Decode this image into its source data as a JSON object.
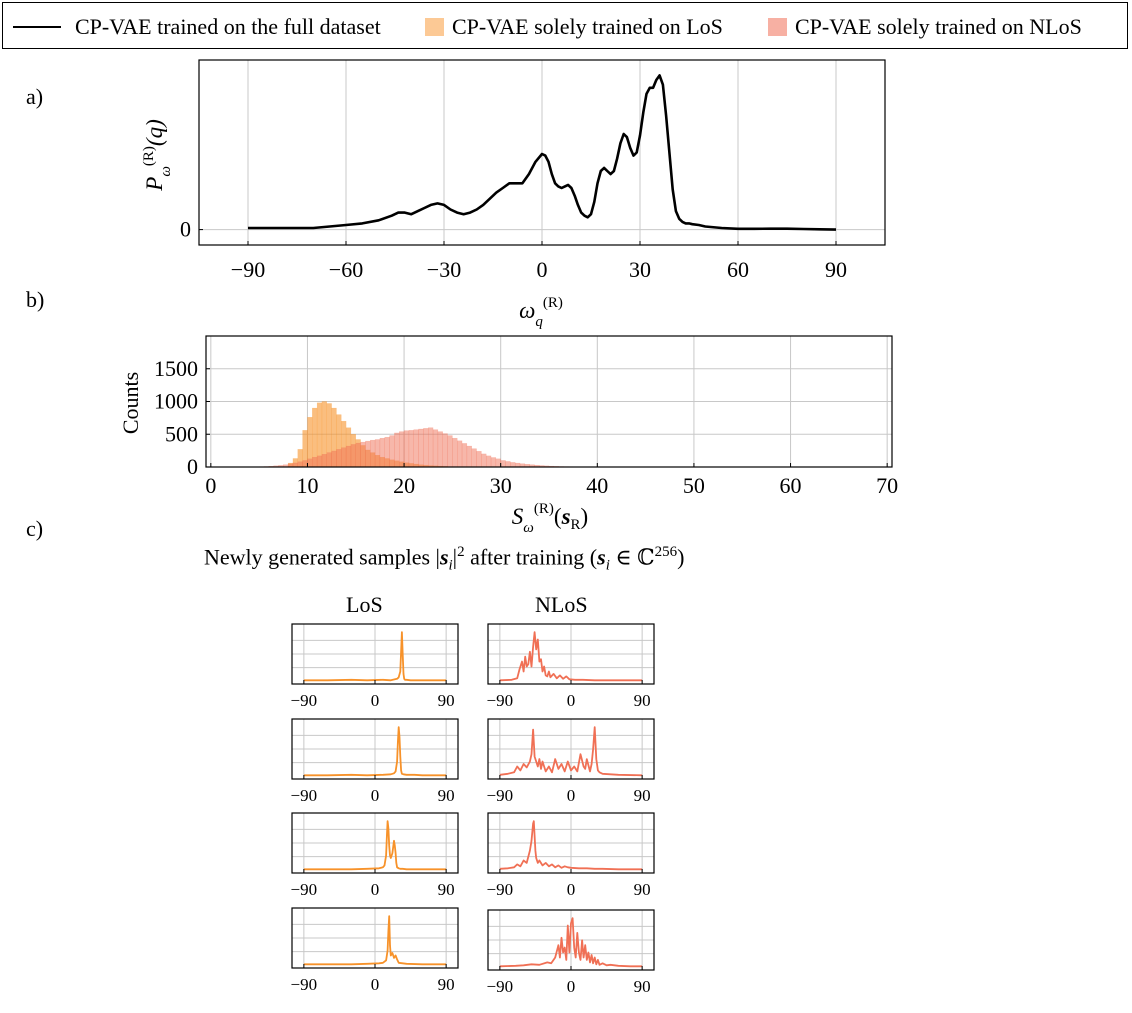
{
  "legend": {
    "full_label": "CP-VAE trained on the full dataset",
    "los_label": "CP-VAE solely trained on LoS",
    "nlos_label": "CP-VAE solely trained on NLoS"
  },
  "colors": {
    "full": "#000000",
    "los": "#f7922a",
    "nlos": "#f07055",
    "los_fill": "#fcc995",
    "nlos_fill": "#f7b0a3",
    "grid": "#c8c8c8"
  },
  "labels": {
    "a": "a)",
    "b": "b)",
    "c": "c)"
  },
  "panel_c": {
    "title": "Newly generated samples |s_i|² after training (s_i ∈ ℂ²⁵⁶)",
    "title_pre": "Newly generated samples |",
    "title_s": "s",
    "title_i": "i",
    "title_mid": "|",
    "title_sq": "2",
    "title_post": " after training (",
    "title_s2": "s",
    "title_i2": "i",
    "title_in": " ∈ ℂ",
    "title_exp": "256",
    "title_close": ")",
    "los_head": "LoS",
    "nlos_head": "NLoS"
  },
  "chart_data": [
    {
      "type": "line",
      "id": "a",
      "ylabel": "P_ω^(R)(q)",
      "xlabel": "ω_q^(R)",
      "xlim": [
        -105,
        105
      ],
      "ylim": [
        -0.1,
        1.1
      ],
      "x_ticks": [
        "−90",
        "−60",
        "−30",
        "0",
        "30",
        "60",
        "90"
      ],
      "y_ticks": [
        "0"
      ],
      "grid": true,
      "series": [
        {
          "name": "CP-VAE trained on the full dataset",
          "x": [
            -90,
            -80,
            -70,
            -65,
            -60,
            -55,
            -50,
            -46,
            -44,
            -42,
            -40,
            -38,
            -36,
            -34,
            -32,
            -30,
            -28,
            -26,
            -24,
            -22,
            -20,
            -18,
            -16,
            -14,
            -12,
            -10,
            -8,
            -6,
            -4,
            -2,
            0,
            1,
            2,
            3,
            4,
            5,
            6,
            7,
            8,
            9,
            10,
            11,
            12,
            13,
            14,
            15,
            16,
            17,
            18,
            19,
            20,
            21,
            22,
            23,
            24,
            25,
            26,
            27,
            28,
            29,
            30,
            31,
            32,
            33,
            34,
            35,
            36,
            37,
            38,
            39,
            40,
            41,
            42,
            43,
            44,
            45,
            46,
            48,
            50,
            55,
            60,
            65,
            70,
            75,
            80,
            85,
            90
          ],
          "y": [
            0.01,
            0.01,
            0.01,
            0.02,
            0.03,
            0.04,
            0.06,
            0.09,
            0.11,
            0.11,
            0.1,
            0.12,
            0.14,
            0.16,
            0.17,
            0.16,
            0.13,
            0.11,
            0.1,
            0.11,
            0.13,
            0.16,
            0.2,
            0.24,
            0.27,
            0.3,
            0.3,
            0.3,
            0.36,
            0.44,
            0.49,
            0.48,
            0.44,
            0.36,
            0.3,
            0.28,
            0.27,
            0.28,
            0.29,
            0.27,
            0.22,
            0.16,
            0.11,
            0.09,
            0.08,
            0.1,
            0.18,
            0.3,
            0.38,
            0.4,
            0.38,
            0.36,
            0.38,
            0.46,
            0.56,
            0.62,
            0.6,
            0.53,
            0.48,
            0.5,
            0.61,
            0.76,
            0.88,
            0.92,
            0.92,
            0.97,
            1.0,
            0.94,
            0.74,
            0.5,
            0.26,
            0.12,
            0.07,
            0.05,
            0.04,
            0.04,
            0.035,
            0.03,
            0.02,
            0.01,
            0.005,
            0.005,
            0.006,
            0.006,
            0.004,
            0.002,
            0.0
          ]
        }
      ]
    },
    {
      "type": "bar",
      "id": "b",
      "xlabel": "S_ω^(R)(s_R)",
      "ylabel": "Counts",
      "xlim": [
        -0.5,
        70.5
      ],
      "ylim": [
        0,
        2000
      ],
      "x_ticks": [
        "0",
        "10",
        "20",
        "30",
        "40",
        "50",
        "60",
        "70"
      ],
      "y_ticks": [
        "0",
        "500",
        "1000",
        "1500"
      ],
      "grid": true,
      "bin_width": 0.5,
      "series": [
        {
          "name": "CP-VAE solely trained on LoS",
          "x": [
            8,
            8.5,
            9,
            9.5,
            10,
            10.5,
            11,
            11.5,
            12,
            12.5,
            13,
            13.5,
            14,
            14.5,
            15,
            15.5,
            16,
            16.5,
            17,
            17.5,
            18,
            18.5,
            19,
            19.5,
            20,
            20.5,
            21,
            21.5,
            22,
            22.5,
            23,
            23.5,
            24
          ],
          "y": [
            60,
            130,
            270,
            560,
            760,
            900,
            980,
            1000,
            970,
            900,
            800,
            700,
            600,
            500,
            420,
            330,
            260,
            220,
            180,
            150,
            130,
            110,
            95,
            80,
            65,
            55,
            45,
            35,
            28,
            22,
            18,
            14,
            10
          ]
        },
        {
          "name": "CP-VAE solely trained on NLoS",
          "x": [
            5,
            5.5,
            6,
            6.5,
            7,
            7.5,
            8,
            8.5,
            9,
            9.5,
            10,
            10.5,
            11,
            11.5,
            12,
            12.5,
            13,
            13.5,
            14,
            14.5,
            15,
            15.5,
            16,
            16.5,
            17,
            17.5,
            18,
            18.5,
            19,
            19.5,
            20,
            20.5,
            21,
            21.5,
            22,
            22.5,
            23,
            23.5,
            24,
            24.5,
            25,
            25.5,
            26,
            26.5,
            27,
            27.5,
            28,
            28.5,
            29,
            29.5,
            30,
            30.5,
            31,
            31.5,
            32,
            32.5,
            33,
            33.5,
            34,
            34.5,
            35,
            35.5,
            36,
            36.5,
            37,
            37.5,
            38,
            38.5,
            39,
            39.5,
            40
          ],
          "y": [
            5,
            8,
            12,
            18,
            25,
            35,
            48,
            62,
            80,
            100,
            125,
            150,
            170,
            195,
            220,
            245,
            270,
            295,
            320,
            345,
            365,
            380,
            395,
            410,
            420,
            440,
            455,
            480,
            520,
            540,
            555,
            560,
            570,
            580,
            590,
            600,
            570,
            540,
            510,
            480,
            440,
            400,
            360,
            320,
            280,
            240,
            200,
            170,
            145,
            125,
            100,
            85,
            70,
            60,
            50,
            42,
            35,
            28,
            22,
            17,
            13,
            10,
            8,
            6,
            5,
            4,
            3,
            2,
            2,
            1,
            1
          ]
        }
      ]
    },
    {
      "type": "line",
      "id": "c-los-1",
      "xlim": [
        -105,
        105
      ],
      "x_ticks": [
        "−90",
        "0",
        "90"
      ],
      "grid": true,
      "series": [
        {
          "x": [
            -90,
            -60,
            -30,
            -10,
            10,
            20,
            28,
            30,
            32,
            33,
            34,
            35,
            36,
            37,
            38,
            40,
            45,
            60,
            90
          ],
          "y": [
            0.02,
            0.02,
            0.03,
            0.02,
            0.03,
            0.02,
            0.05,
            0.08,
            0.2,
            0.6,
            1.0,
            0.55,
            0.15,
            0.05,
            0.03,
            0.03,
            0.02,
            0.02,
            0.02
          ]
        }
      ]
    },
    {
      "type": "line",
      "id": "c-los-2",
      "xlim": [
        -105,
        105
      ],
      "x_ticks": [
        "−90",
        "0",
        "90"
      ],
      "grid": true,
      "series": [
        {
          "x": [
            -90,
            -60,
            -30,
            -10,
            10,
            20,
            24,
            26,
            28,
            29,
            30,
            31,
            32,
            33,
            34,
            36,
            40,
            50,
            60,
            90
          ],
          "y": [
            0.02,
            0.02,
            0.03,
            0.02,
            0.03,
            0.04,
            0.06,
            0.1,
            0.3,
            0.7,
            1.0,
            0.8,
            0.4,
            0.12,
            0.05,
            0.04,
            0.03,
            0.03,
            0.02,
            0.02
          ]
        }
      ]
    },
    {
      "type": "line",
      "id": "c-los-3",
      "xlim": [
        -105,
        105
      ],
      "x_ticks": [
        "−90",
        "0",
        "90"
      ],
      "grid": true,
      "series": [
        {
          "x": [
            -90,
            -60,
            -30,
            -10,
            5,
            10,
            12,
            14,
            15,
            16,
            17,
            18,
            19,
            20,
            22,
            24,
            25,
            26,
            27,
            28,
            30,
            32,
            35,
            40,
            60,
            90
          ],
          "y": [
            0.02,
            0.02,
            0.02,
            0.03,
            0.04,
            0.06,
            0.1,
            0.3,
            0.7,
            1.0,
            0.85,
            0.5,
            0.3,
            0.25,
            0.35,
            0.6,
            0.5,
            0.35,
            0.15,
            0.06,
            0.04,
            0.03,
            0.03,
            0.02,
            0.02,
            0.02
          ]
        }
      ]
    },
    {
      "type": "line",
      "id": "c-los-4",
      "xlim": [
        -105,
        105
      ],
      "x_ticks": [
        "−90",
        "0",
        "90"
      ],
      "grid": true,
      "series": [
        {
          "x": [
            -90,
            -60,
            -30,
            -10,
            5,
            10,
            14,
            16,
            17,
            18,
            19,
            20,
            22,
            24,
            26,
            28,
            30,
            35,
            40,
            60,
            90
          ],
          "y": [
            0.02,
            0.02,
            0.02,
            0.03,
            0.04,
            0.05,
            0.1,
            0.3,
            0.7,
            1.0,
            0.4,
            0.2,
            0.25,
            0.15,
            0.2,
            0.12,
            0.05,
            0.04,
            0.03,
            0.02,
            0.02
          ]
        }
      ]
    },
    {
      "type": "line",
      "id": "c-nlos-1",
      "xlim": [
        -105,
        105
      ],
      "x_ticks": [
        "−90",
        "0",
        "90"
      ],
      "grid": true,
      "series": [
        {
          "x": [
            -90,
            -75,
            -68,
            -65,
            -62,
            -60,
            -58,
            -56,
            -54,
            -52,
            -50,
            -48,
            -46,
            -44,
            -42,
            -40,
            -38,
            -36,
            -34,
            -32,
            -30,
            -28,
            -26,
            -22,
            -18,
            -14,
            -10,
            -6,
            -2,
            5,
            15,
            30,
            60,
            90
          ],
          "y": [
            0.02,
            0.03,
            0.06,
            0.25,
            0.4,
            0.2,
            0.5,
            0.3,
            0.35,
            0.6,
            0.3,
            0.7,
            1.0,
            0.65,
            0.85,
            0.4,
            0.45,
            0.2,
            0.3,
            0.12,
            0.1,
            0.2,
            0.08,
            0.15,
            0.06,
            0.12,
            0.05,
            0.1,
            0.04,
            0.03,
            0.03,
            0.02,
            0.02,
            0.02
          ]
        }
      ]
    },
    {
      "type": "line",
      "id": "c-nlos-2",
      "xlim": [
        -105,
        105
      ],
      "x_ticks": [
        "−90",
        "0",
        "90"
      ],
      "grid": true,
      "series": [
        {
          "x": [
            -90,
            -80,
            -72,
            -68,
            -64,
            -60,
            -56,
            -52,
            -50,
            -48,
            -46,
            -44,
            -42,
            -40,
            -38,
            -36,
            -32,
            -28,
            -24,
            -20,
            -16,
            -12,
            -8,
            -4,
            0,
            4,
            8,
            12,
            16,
            18,
            20,
            24,
            26,
            28,
            30,
            32,
            34,
            36,
            40,
            50,
            60,
            90
          ],
          "y": [
            0.03,
            0.05,
            0.08,
            0.2,
            0.12,
            0.25,
            0.18,
            0.3,
            0.45,
            0.95,
            0.4,
            0.3,
            0.2,
            0.35,
            0.15,
            0.3,
            0.1,
            0.2,
            0.08,
            0.35,
            0.15,
            0.25,
            0.1,
            0.3,
            0.12,
            0.2,
            0.1,
            0.45,
            0.2,
            0.15,
            0.35,
            0.1,
            0.25,
            0.55,
            1.0,
            0.35,
            0.12,
            0.08,
            0.05,
            0.04,
            0.03,
            0.02
          ]
        }
      ]
    },
    {
      "type": "line",
      "id": "c-nlos-3",
      "xlim": [
        -105,
        105
      ],
      "x_ticks": [
        "−90",
        "0",
        "90"
      ],
      "grid": true,
      "series": [
        {
          "x": [
            -90,
            -80,
            -72,
            -68,
            -64,
            -60,
            -56,
            -52,
            -50,
            -48,
            -47,
            -46,
            -45,
            -44,
            -42,
            -40,
            -36,
            -32,
            -28,
            -24,
            -20,
            -16,
            -12,
            -8,
            -4,
            0,
            10,
            20,
            30,
            40,
            60,
            90
          ],
          "y": [
            0.03,
            0.04,
            0.06,
            0.12,
            0.08,
            0.2,
            0.15,
            0.4,
            0.6,
            0.95,
            1.0,
            0.7,
            0.4,
            0.25,
            0.15,
            0.2,
            0.1,
            0.15,
            0.08,
            0.12,
            0.06,
            0.1,
            0.05,
            0.08,
            0.06,
            0.05,
            0.04,
            0.04,
            0.03,
            0.03,
            0.02,
            0.02
          ]
        }
      ]
    },
    {
      "type": "line",
      "id": "c-nlos-4",
      "xlim": [
        -105,
        105
      ],
      "x_ticks": [
        "−90",
        "0",
        "90"
      ],
      "grid": true,
      "series": [
        {
          "x": [
            -90,
            -70,
            -60,
            -50,
            -40,
            -30,
            -25,
            -20,
            -16,
            -14,
            -12,
            -10,
            -8,
            -6,
            -4,
            -2,
            0,
            2,
            4,
            6,
            8,
            10,
            12,
            14,
            16,
            18,
            20,
            22,
            24,
            26,
            28,
            30,
            32,
            34,
            36,
            40,
            45,
            50,
            60,
            75,
            90
          ],
          "y": [
            0.02,
            0.03,
            0.04,
            0.06,
            0.05,
            0.1,
            0.08,
            0.2,
            0.45,
            0.2,
            0.6,
            0.3,
            0.4,
            0.15,
            0.85,
            0.3,
            0.9,
            1.0,
            0.4,
            0.2,
            0.7,
            0.3,
            0.15,
            0.55,
            0.2,
            0.45,
            0.15,
            0.3,
            0.1,
            0.25,
            0.08,
            0.2,
            0.06,
            0.15,
            0.05,
            0.08,
            0.04,
            0.05,
            0.03,
            0.02,
            0.02
          ]
        }
      ]
    }
  ]
}
